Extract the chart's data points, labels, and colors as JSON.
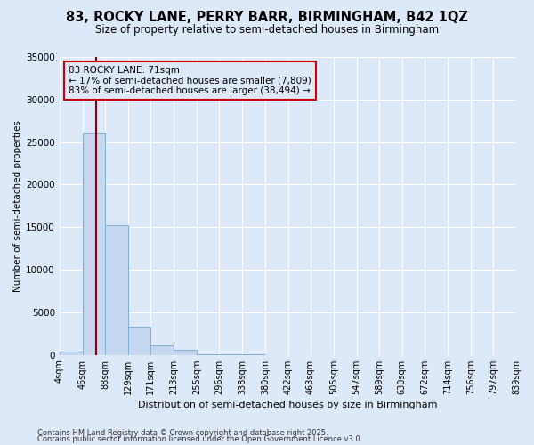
{
  "title": "83, ROCKY LANE, PERRY BARR, BIRMINGHAM, B42 1QZ",
  "subtitle": "Size of property relative to semi-detached houses in Birmingham",
  "xlabel": "Distribution of semi-detached houses by size in Birmingham",
  "ylabel": "Number of semi-detached properties",
  "bin_edges": [
    4,
    46,
    88,
    129,
    171,
    213,
    255,
    296,
    338,
    380,
    422,
    463,
    505,
    547,
    589,
    630,
    672,
    714,
    756,
    797,
    839
  ],
  "bin_labels": [
    "4sqm",
    "46sqm",
    "88sqm",
    "129sqm",
    "171sqm",
    "213sqm",
    "255sqm",
    "296sqm",
    "338sqm",
    "380sqm",
    "422sqm",
    "463sqm",
    "505sqm",
    "547sqm",
    "589sqm",
    "630sqm",
    "672sqm",
    "714sqm",
    "756sqm",
    "797sqm",
    "839sqm"
  ],
  "bar_heights": [
    350,
    26100,
    15200,
    3300,
    1150,
    550,
    100,
    50,
    30,
    10,
    5,
    3,
    2,
    1,
    0,
    0,
    0,
    0,
    0,
    0
  ],
  "bar_color": "#c5d8f0",
  "bar_edge_color": "#7aafd4",
  "property_size": 71,
  "property_label": "83 ROCKY LANE: 71sqm",
  "pct_smaller": 17,
  "pct_larger": 83,
  "n_smaller": 7809,
  "n_larger": 38494,
  "vline_color": "#8b0000",
  "annotation_box_color": "#cc0000",
  "background_color": "#dde8f8",
  "plot_bg_color": "#dde8f8",
  "ylim": [
    0,
    35000
  ],
  "yticks": [
    0,
    5000,
    10000,
    15000,
    20000,
    25000,
    30000,
    35000
  ],
  "footer_line1": "Contains HM Land Registry data © Crown copyright and database right 2025.",
  "footer_line2": "Contains public sector information licensed under the Open Government Licence v3.0."
}
